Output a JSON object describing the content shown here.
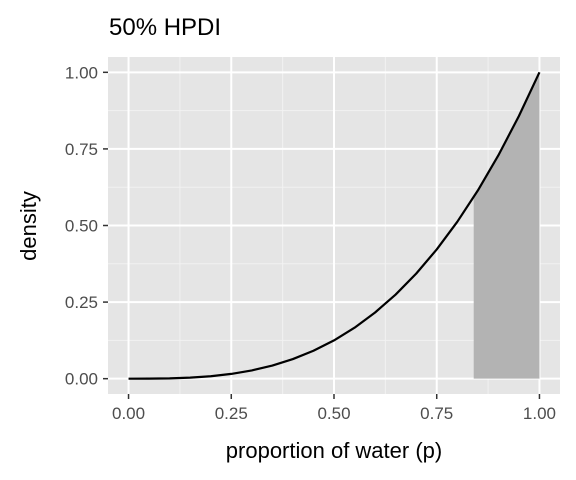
{
  "chart_data": {
    "type": "line",
    "title": "50% HPDI",
    "xlabel": "proportion of water (p)",
    "ylabel": "density",
    "xlim": [
      -0.05,
      1.05
    ],
    "ylim": [
      -0.05,
      1.05
    ],
    "x_ticks": [
      "0.00",
      "0.25",
      "0.50",
      "0.75",
      "1.00"
    ],
    "y_ticks": [
      "0.00",
      "0.25",
      "0.50",
      "0.75",
      "1.00"
    ],
    "x_tick_values": [
      0,
      0.25,
      0.5,
      0.75,
      1
    ],
    "y_tick_values": [
      0,
      0.25,
      0.5,
      0.75,
      1
    ],
    "grid": true,
    "series": [
      {
        "x": [
          0,
          0.05,
          0.1,
          0.15,
          0.2,
          0.25,
          0.3,
          0.35,
          0.4,
          0.45,
          0.5,
          0.55,
          0.6,
          0.65,
          0.7,
          0.75,
          0.8,
          0.85,
          0.9,
          0.95,
          1
        ],
        "y": [
          0,
          0.0001,
          0.001,
          0.0034,
          0.008,
          0.0156,
          0.027,
          0.0429,
          0.064,
          0.0911,
          0.125,
          0.1664,
          0.216,
          0.2746,
          0.343,
          0.4219,
          0.512,
          0.6141,
          0.729,
          0.8574,
          1
        ],
        "color": "#000000"
      }
    ],
    "shaded_interval": {
      "x_start": 0.84,
      "x_end": 1,
      "color": "#b3b3b3"
    },
    "colors": {
      "panel_background": "#e5e5e5",
      "grid_major": "#ffffff",
      "grid_minor": "#f2f2f2",
      "tick_color": "#333333"
    }
  }
}
